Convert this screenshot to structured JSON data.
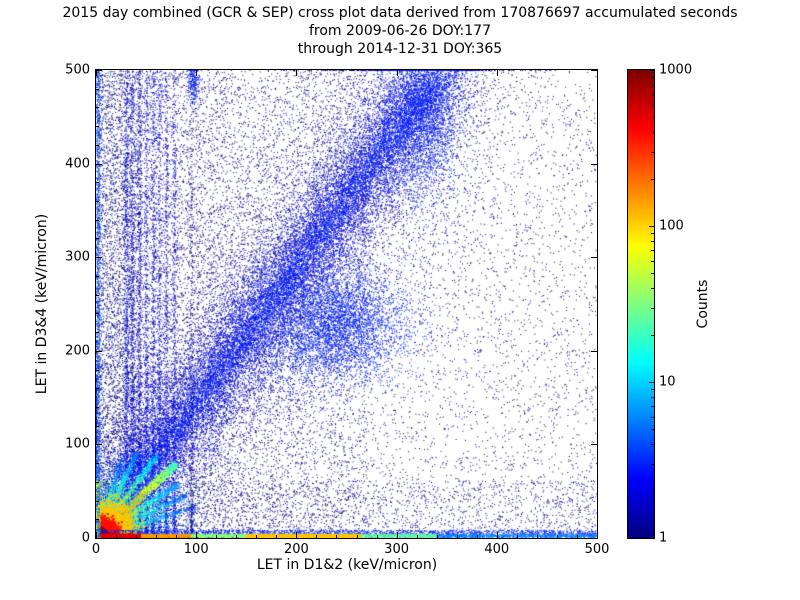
{
  "chart_data": {
    "type": "heatmap",
    "title_lines": [
      "2015 day combined (GCR & SEP) cross plot data derived from 170876697 accumulated seconds",
      "from 2009-06-26 DOY:177",
      "through 2014-12-31 DOY:365"
    ],
    "accumulated_seconds": 170876697,
    "date_start": "2009-06-26 DOY:177",
    "date_end": "2014-12-31 DOY:365",
    "xlabel": "LET in D1&2 (keV/micron)",
    "ylabel": "LET in D3&4 (keV/micron)",
    "xlim": [
      0,
      500
    ],
    "ylim": [
      0,
      500
    ],
    "xticks": [
      0,
      100,
      200,
      300,
      400,
      500
    ],
    "yticks": [
      0,
      100,
      200,
      300,
      400,
      500
    ],
    "minor_tick_step": 20,
    "grid": false,
    "colorbar": {
      "label": "Counts",
      "scale": "log",
      "min": 1,
      "max": 1000,
      "ticks": [
        1,
        10,
        100,
        1000
      ],
      "colormap": "jet"
    },
    "render_seed": 7,
    "features": [
      {
        "kind": "uniform",
        "n": 7000,
        "x": [
          0,
          500
        ],
        "y": [
          0,
          500
        ],
        "count": 1
      },
      {
        "kind": "uniform",
        "n": 4500,
        "x": [
          0,
          130
        ],
        "y": [
          0,
          500
        ],
        "count": 1
      },
      {
        "kind": "uniform",
        "n": 2600,
        "x": [
          0,
          45
        ],
        "y": [
          0,
          500
        ],
        "count": 1
      },
      {
        "kind": "uniform",
        "n": 3000,
        "x": [
          130,
          270
        ],
        "y": [
          0,
          500
        ],
        "count": 1
      },
      {
        "kind": "uniform",
        "n": 1500,
        "x": [
          0,
          500
        ],
        "y": [
          0,
          60
        ],
        "count": 1
      },
      {
        "kind": "line",
        "n": 7000,
        "x1": 0,
        "y1": 0,
        "x2": 345,
        "y2": 500,
        "sigma": 55,
        "count": 1
      },
      {
        "kind": "line",
        "n": 15000,
        "x1": 0,
        "y1": 0,
        "x2": 345,
        "y2": 500,
        "sigma": 22,
        "count": 2
      },
      {
        "kind": "line",
        "n": 6000,
        "x1": 0,
        "y1": 0,
        "x2": 345,
        "y2": 500,
        "sigma": 9,
        "count": 3
      },
      {
        "kind": "blob",
        "n": 4500,
        "cx": 238,
        "cy": 228,
        "sx": 38,
        "sy": 32,
        "count": 3
      },
      {
        "kind": "blob",
        "n": 2500,
        "cx": 325,
        "cy": 450,
        "sx": 20,
        "sy": 45,
        "count": 3
      },
      {
        "kind": "blob",
        "n": 250,
        "cx": 97,
        "cy": 488,
        "sx": 3,
        "sy": 12,
        "count": 3
      },
      {
        "kind": "streak",
        "n": 900,
        "x": 30,
        "pow": 1.8,
        "count": 2
      },
      {
        "kind": "streak",
        "n": 800,
        "x": 36,
        "pow": 1.8,
        "count": 2
      },
      {
        "kind": "streak",
        "n": 750,
        "x": 43,
        "pow": 1.8,
        "count": 2
      },
      {
        "kind": "streak",
        "n": 700,
        "x": 50,
        "pow": 1.8,
        "count": 2
      },
      {
        "kind": "streak",
        "n": 650,
        "x": 57,
        "pow": 1.6,
        "count": 2
      },
      {
        "kind": "streak",
        "n": 600,
        "x": 63,
        "pow": 1.6,
        "count": 2
      },
      {
        "kind": "streak",
        "n": 550,
        "x": 70,
        "pow": 1.8,
        "count": 2
      },
      {
        "kind": "streak",
        "n": 500,
        "x": 78,
        "pow": 1.8,
        "count": 2
      },
      {
        "kind": "streak",
        "n": 400,
        "x": 95,
        "pow": 2.0,
        "count": 1
      },
      {
        "kind": "ray",
        "n": 2800,
        "x2": 78,
        "y2": 78,
        "sigma": 1.3,
        "count0": 900,
        "count1": 20,
        "size": 2
      },
      {
        "kind": "ray",
        "n": 1000,
        "x2": 60,
        "y2": 87,
        "sigma": 1.6,
        "count0": 180,
        "count1": 8
      },
      {
        "kind": "ray",
        "n": 700,
        "x2": 40,
        "y2": 90,
        "sigma": 1.6,
        "count0": 90,
        "count1": 5
      },
      {
        "kind": "ray",
        "n": 500,
        "x2": 27,
        "y2": 88,
        "sigma": 1.5,
        "count0": 50,
        "count1": 3
      },
      {
        "kind": "ray",
        "n": 800,
        "x2": 82,
        "y2": 57,
        "sigma": 1.6,
        "count0": 120,
        "count1": 6
      },
      {
        "kind": "ray",
        "n": 550,
        "x2": 90,
        "y2": 45,
        "sigma": 1.6,
        "count0": 70,
        "count1": 4
      },
      {
        "kind": "ray",
        "n": 420,
        "x2": 100,
        "y2": 33,
        "sigma": 1.5,
        "count0": 45,
        "count1": 3
      },
      {
        "kind": "blob",
        "n": 1600,
        "cx": 30,
        "cy": 30,
        "sx": 26,
        "sy": 26,
        "count": 7
      },
      {
        "kind": "blob",
        "n": 1800,
        "cx": 20,
        "cy": 20,
        "sx": 18,
        "sy": 18,
        "count": 30
      },
      {
        "kind": "blob",
        "n": 2200,
        "cx": 12,
        "cy": 12,
        "sx": 11,
        "sy": 11,
        "count": 110,
        "size": 2
      },
      {
        "kind": "blob",
        "n": 2400,
        "cx": 6,
        "cy": 6,
        "sx": 6,
        "sy": 6,
        "count": 380,
        "size": 2
      },
      {
        "kind": "blob",
        "n": 2600,
        "cx": 2.5,
        "cy": 2.5,
        "sx": 3,
        "sy": 3,
        "count": 950,
        "size": 2
      },
      {
        "kind": "uniform",
        "n": 2200,
        "x": [
          0,
          500
        ],
        "y": [
          0,
          8
        ],
        "count": 3
      },
      {
        "kind": "uniform",
        "n": 1100,
        "x": [
          0,
          45
        ],
        "y": [
          0,
          3.5
        ],
        "count": 520,
        "size": 2
      },
      {
        "kind": "uniform",
        "n": 800,
        "x": [
          45,
          95
        ],
        "y": [
          0,
          3.5
        ],
        "count": 150
      },
      {
        "kind": "uniform",
        "n": 600,
        "x": [
          95,
          150
        ],
        "y": [
          0,
          3.5
        ],
        "count": 35
      },
      {
        "kind": "uniform",
        "n": 1400,
        "x": [
          150,
          265
        ],
        "y": [
          0,
          3.5
        ],
        "count": 110,
        "size": 2
      },
      {
        "kind": "uniform",
        "n": 600,
        "x": [
          265,
          340
        ],
        "y": [
          0,
          3.5
        ],
        "count": 25
      },
      {
        "kind": "uniform",
        "n": 800,
        "x": [
          340,
          500
        ],
        "y": [
          0,
          3.5
        ],
        "count": 6
      },
      {
        "kind": "uniform",
        "n": 450,
        "x": [
          0,
          3.5
        ],
        "y": [
          0,
          60
        ],
        "count": 50
      },
      {
        "kind": "uniform",
        "n": 1200,
        "x": [
          0,
          3.5
        ],
        "y": [
          0,
          500
        ],
        "count": 4
      }
    ]
  }
}
